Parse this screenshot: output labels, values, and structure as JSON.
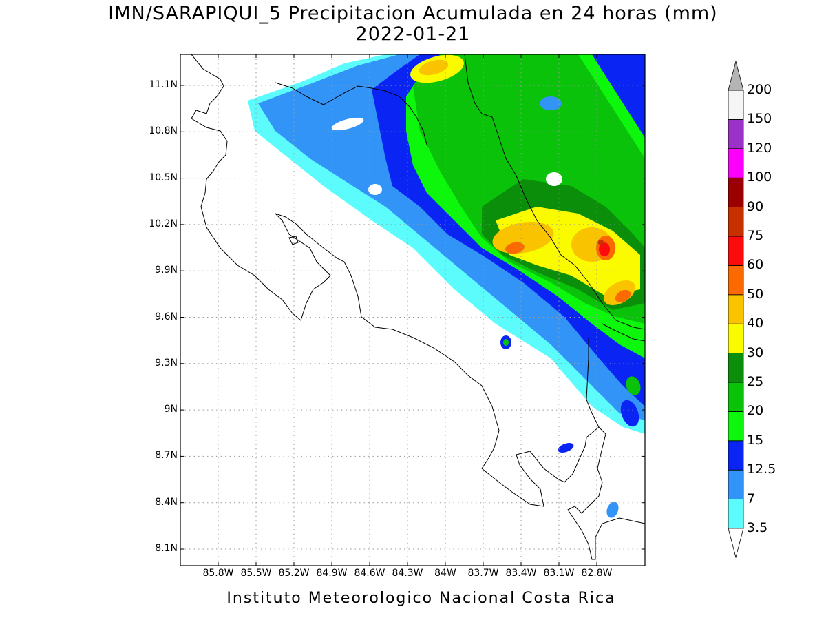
{
  "title": {
    "line1": "IMN/SARAPIQUI_5 Precipitacion Acumulada en 24 horas (mm)",
    "line2": "2022-01-21"
  },
  "footer": "Instituto Meteorologico Nacional Costa Rica",
  "map": {
    "lat_labels": [
      "11.1N",
      "10.8N",
      "10.5N",
      "10.2N",
      "9.9N",
      "9.6N",
      "9.3N",
      "9N",
      "8.7N",
      "8.4N",
      "8.1N"
    ],
    "lon_labels": [
      "85.8W",
      "85.5W",
      "85.2W",
      "84.9W",
      "84.6W",
      "84.3W",
      "84W",
      "83.7W",
      "83.4W",
      "83.1W",
      "82.8W"
    ],
    "lat_values": [
      11.1,
      10.8,
      10.5,
      10.2,
      9.9,
      9.6,
      9.3,
      9.0,
      8.7,
      8.4,
      8.1
    ],
    "lon_values": [
      -85.8,
      -85.5,
      -85.2,
      -84.9,
      -84.6,
      -84.3,
      -84.0,
      -83.7,
      -83.4,
      -83.1,
      -82.8
    ],
    "grid": true
  },
  "colorbar": {
    "levels": [
      "3.5",
      "7",
      "12.5",
      "15",
      "20",
      "25",
      "30",
      "40",
      "50",
      "60",
      "75",
      "90",
      "100",
      "120",
      "150",
      "200"
    ],
    "colors": [
      "#ffffff",
      "#5dfcfc",
      "#3394f8",
      "#0a24f4",
      "#0cf70c",
      "#09c209",
      "#0b8f0b",
      "#fbfb00",
      "#f9c300",
      "#fb6a00",
      "#fb0b0b",
      "#c83000",
      "#9b0000",
      "#fb00fb",
      "#9b32c8",
      "#f5f5f5",
      "#b4b4b4"
    ]
  }
}
